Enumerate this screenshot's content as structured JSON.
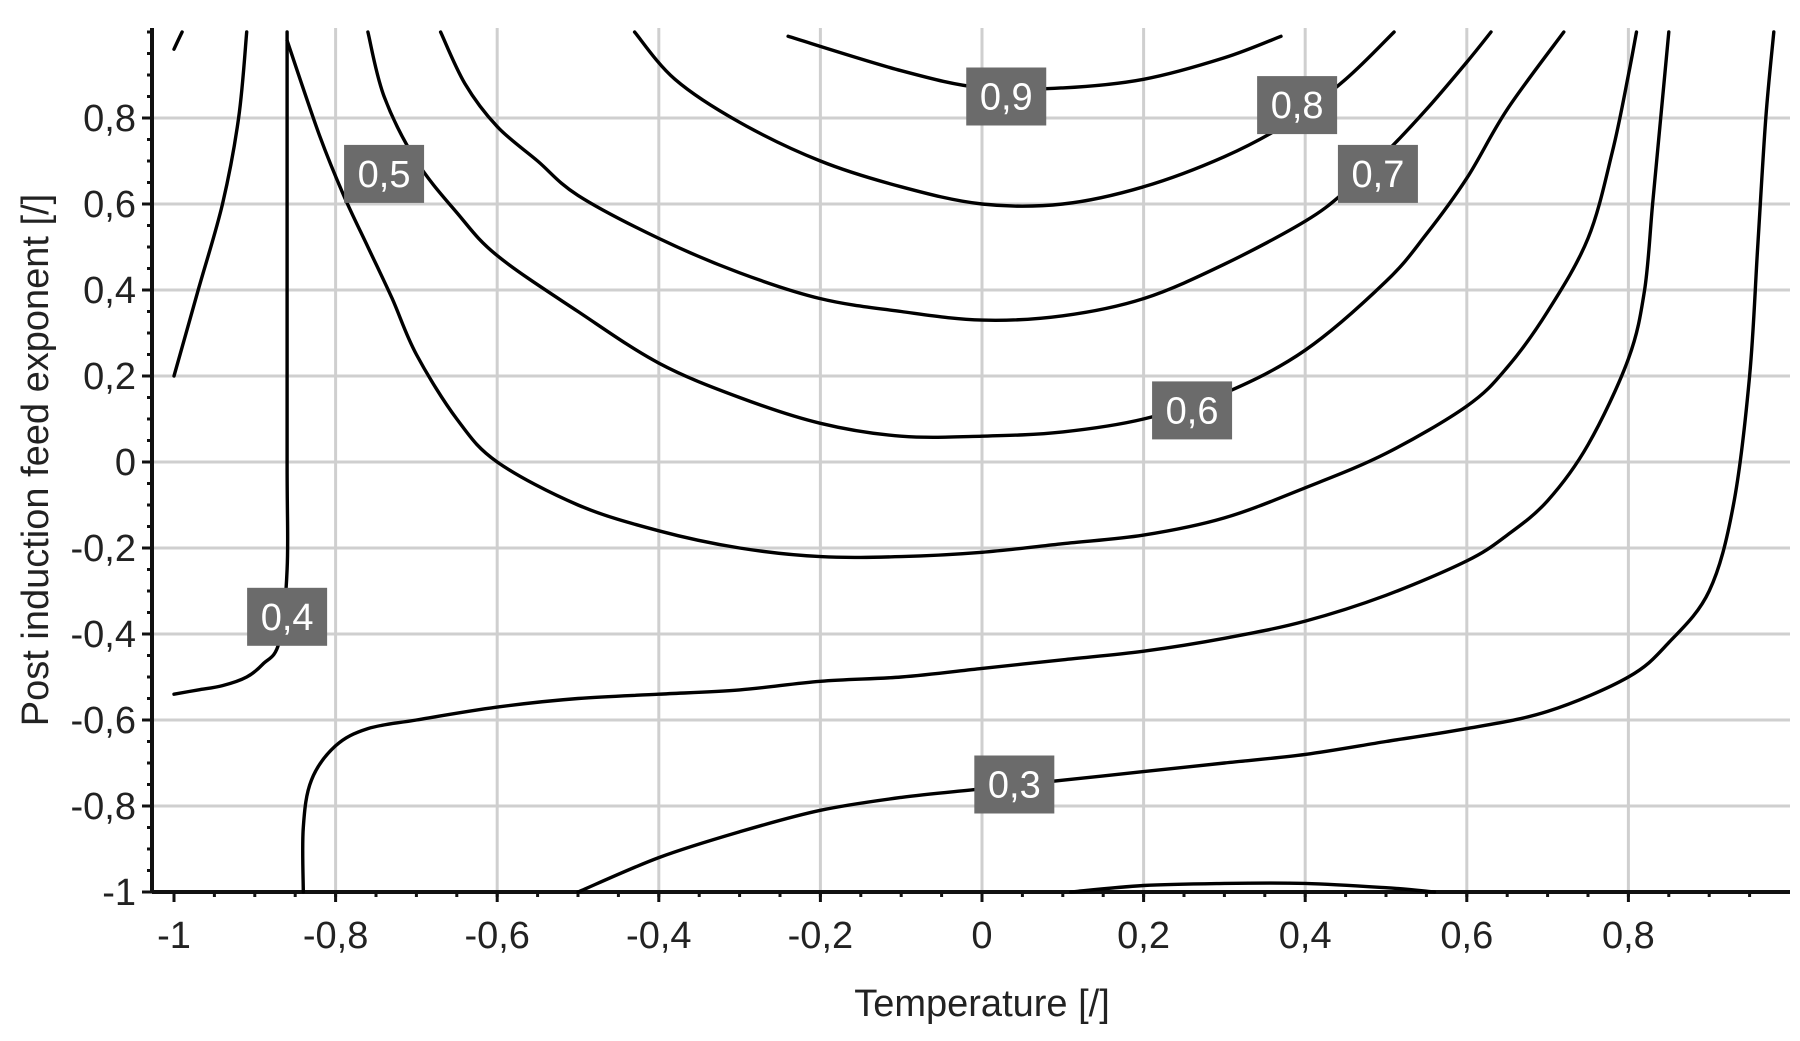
{
  "chart_data": {
    "type": "contour",
    "title": "",
    "xlabel": "Temperature [/]",
    "ylabel": "Post induction feed exponent [/]",
    "xlim": [
      -1,
      1
    ],
    "ylim": [
      -1,
      1
    ],
    "grid": true,
    "x_ticks": [
      -1,
      -0.8,
      -0.6,
      -0.4,
      -0.2,
      0,
      0.2,
      0.4,
      0.6,
      0.8
    ],
    "x_tick_labels": [
      "-1",
      "-0,8",
      "-0,6",
      "-0,4",
      "-0,2",
      "0",
      "0,2",
      "0,4",
      "0,6",
      "0,8"
    ],
    "y_ticks": [
      -1,
      -0.8,
      -0.6,
      -0.4,
      -0.2,
      0,
      0.2,
      0.4,
      0.6,
      0.8
    ],
    "y_tick_labels": [
      "-1",
      "-0,8",
      "-0,6",
      "-0,4",
      "-0,2",
      "0",
      "0,2",
      "0,4",
      "0,6",
      "0,8"
    ],
    "contours": [
      {
        "level": "0,9",
        "points": [
          [
            -0.24,
            0.99
          ],
          [
            -0.1,
            0.91
          ],
          [
            0,
            0.87
          ],
          [
            0.1,
            0.87
          ],
          [
            0.2,
            0.89
          ],
          [
            0.3,
            0.94
          ],
          [
            0.37,
            0.99
          ]
        ]
      },
      {
        "level": "0,8",
        "points": [
          [
            -0.43,
            1.0
          ],
          [
            -0.38,
            0.89
          ],
          [
            -0.3,
            0.79
          ],
          [
            -0.2,
            0.7
          ],
          [
            -0.1,
            0.64
          ],
          [
            0,
            0.6
          ],
          [
            0.1,
            0.6
          ],
          [
            0.2,
            0.64
          ],
          [
            0.3,
            0.71
          ],
          [
            0.38,
            0.79
          ],
          [
            0.45,
            0.89
          ],
          [
            0.51,
            1.0
          ]
        ]
      },
      {
        "level": "0,7",
        "points": [
          [
            -0.67,
            1.0
          ],
          [
            -0.64,
            0.88
          ],
          [
            -0.6,
            0.78
          ],
          [
            -0.55,
            0.7
          ],
          [
            -0.5,
            0.62
          ],
          [
            -0.4,
            0.52
          ],
          [
            -0.3,
            0.44
          ],
          [
            -0.2,
            0.38
          ],
          [
            -0.1,
            0.35
          ],
          [
            0,
            0.33
          ],
          [
            0.1,
            0.34
          ],
          [
            0.2,
            0.38
          ],
          [
            0.3,
            0.46
          ],
          [
            0.4,
            0.56
          ],
          [
            0.45,
            0.63
          ],
          [
            0.5,
            0.72
          ],
          [
            0.55,
            0.82
          ],
          [
            0.6,
            0.93
          ],
          [
            0.63,
            1.0
          ]
        ]
      },
      {
        "level": "0,6",
        "points": [
          [
            -0.76,
            1.0
          ],
          [
            -0.74,
            0.85
          ],
          [
            -0.7,
            0.7
          ],
          [
            -0.65,
            0.58
          ],
          [
            -0.6,
            0.48
          ],
          [
            -0.5,
            0.35
          ],
          [
            -0.4,
            0.23
          ],
          [
            -0.3,
            0.15
          ],
          [
            -0.2,
            0.09
          ],
          [
            -0.1,
            0.06
          ],
          [
            0,
            0.06
          ],
          [
            0.1,
            0.07
          ],
          [
            0.2,
            0.1
          ],
          [
            0.3,
            0.16
          ],
          [
            0.4,
            0.26
          ],
          [
            0.5,
            0.42
          ],
          [
            0.55,
            0.53
          ],
          [
            0.6,
            0.66
          ],
          [
            0.65,
            0.82
          ],
          [
            0.72,
            1.0
          ]
        ]
      },
      {
        "level": "0,5",
        "points": [
          [
            -0.86,
            0.98
          ],
          [
            -0.82,
            0.76
          ],
          [
            -0.79,
            0.62
          ],
          [
            -0.76,
            0.5
          ],
          [
            -0.73,
            0.38
          ],
          [
            -0.7,
            0.25
          ],
          [
            -0.65,
            0.1
          ],
          [
            -0.6,
            0.0
          ],
          [
            -0.5,
            -0.1
          ],
          [
            -0.4,
            -0.16
          ],
          [
            -0.3,
            -0.2
          ],
          [
            -0.2,
            -0.22
          ],
          [
            -0.1,
            -0.22
          ],
          [
            0,
            -0.21
          ],
          [
            0.1,
            -0.19
          ],
          [
            0.2,
            -0.17
          ],
          [
            0.3,
            -0.13
          ],
          [
            0.4,
            -0.06
          ],
          [
            0.5,
            0.02
          ],
          [
            0.6,
            0.13
          ],
          [
            0.65,
            0.22
          ],
          [
            0.7,
            0.35
          ],
          [
            0.75,
            0.52
          ],
          [
            0.78,
            0.72
          ],
          [
            0.8,
            0.9
          ],
          [
            0.81,
            1.0
          ]
        ]
      },
      {
        "level": "0,4",
        "points": [
          [
            -0.86,
            1.0
          ],
          [
            -0.86,
            0.6
          ],
          [
            -0.86,
            0.0
          ],
          [
            -0.86,
            -0.25
          ],
          [
            -0.87,
            -0.42
          ],
          [
            -0.89,
            -0.47
          ],
          [
            -0.91,
            -0.5
          ],
          [
            -0.94,
            -0.52
          ],
          [
            -0.97,
            -0.53
          ],
          [
            -1.0,
            -0.54
          ]
        ]
      },
      {
        "level": "",
        "points": [
          [
            -1.0,
            0.2
          ],
          [
            -0.97,
            0.4
          ],
          [
            -0.94,
            0.6
          ],
          [
            -0.92,
            0.8
          ],
          [
            -0.91,
            1.0
          ]
        ]
      },
      {
        "level": "",
        "points": [
          [
            -1.0,
            0.96
          ],
          [
            -0.99,
            1.0
          ]
        ]
      },
      {
        "level": "",
        "points": [
          [
            -0.84,
            -1.0
          ],
          [
            -0.84,
            -0.85
          ],
          [
            -0.83,
            -0.74
          ],
          [
            -0.8,
            -0.66
          ],
          [
            -0.76,
            -0.62
          ],
          [
            -0.7,
            -0.6
          ],
          [
            -0.6,
            -0.57
          ],
          [
            -0.5,
            -0.55
          ],
          [
            -0.4,
            -0.54
          ],
          [
            -0.3,
            -0.53
          ],
          [
            -0.2,
            -0.51
          ],
          [
            -0.1,
            -0.5
          ],
          [
            0,
            -0.48
          ],
          [
            0.1,
            -0.46
          ],
          [
            0.2,
            -0.44
          ],
          [
            0.3,
            -0.41
          ],
          [
            0.4,
            -0.37
          ],
          [
            0.5,
            -0.31
          ],
          [
            0.6,
            -0.23
          ],
          [
            0.65,
            -0.17
          ],
          [
            0.7,
            -0.09
          ],
          [
            0.75,
            0.04
          ],
          [
            0.8,
            0.24
          ],
          [
            0.82,
            0.4
          ],
          [
            0.83,
            0.6
          ],
          [
            0.84,
            0.8
          ],
          [
            0.85,
            1.0
          ]
        ]
      },
      {
        "level": "0,3",
        "points": [
          [
            -0.5,
            -1.0
          ],
          [
            -0.4,
            -0.92
          ],
          [
            -0.3,
            -0.86
          ],
          [
            -0.2,
            -0.81
          ],
          [
            -0.1,
            -0.78
          ],
          [
            0,
            -0.76
          ],
          [
            0.1,
            -0.74
          ],
          [
            0.2,
            -0.72
          ],
          [
            0.3,
            -0.7
          ],
          [
            0.4,
            -0.68
          ],
          [
            0.5,
            -0.65
          ],
          [
            0.6,
            -0.62
          ],
          [
            0.7,
            -0.58
          ],
          [
            0.8,
            -0.5
          ],
          [
            0.85,
            -0.42
          ],
          [
            0.9,
            -0.3
          ],
          [
            0.93,
            -0.1
          ],
          [
            0.95,
            0.2
          ],
          [
            0.96,
            0.5
          ],
          [
            0.97,
            0.8
          ],
          [
            0.98,
            1.0
          ]
        ]
      },
      {
        "level": "",
        "points": [
          [
            0.11,
            -1.0
          ],
          [
            0.2,
            -0.985
          ],
          [
            0.3,
            -0.98
          ],
          [
            0.4,
            -0.98
          ],
          [
            0.5,
            -0.99
          ],
          [
            0.56,
            -1.0
          ]
        ]
      }
    ],
    "contour_labels": [
      {
        "text": "0,9",
        "x": 0.03,
        "y": 0.85
      },
      {
        "text": "0,8",
        "x": 0.39,
        "y": 0.83
      },
      {
        "text": "0,7",
        "x": 0.49,
        "y": 0.67
      },
      {
        "text": "0,6",
        "x": 0.26,
        "y": 0.12
      },
      {
        "text": "0,5",
        "x": -0.74,
        "y": 0.67
      },
      {
        "text": "0,4",
        "x": -0.86,
        "y": -0.36
      },
      {
        "text": "0,3",
        "x": 0.04,
        "y": -0.75
      }
    ]
  }
}
